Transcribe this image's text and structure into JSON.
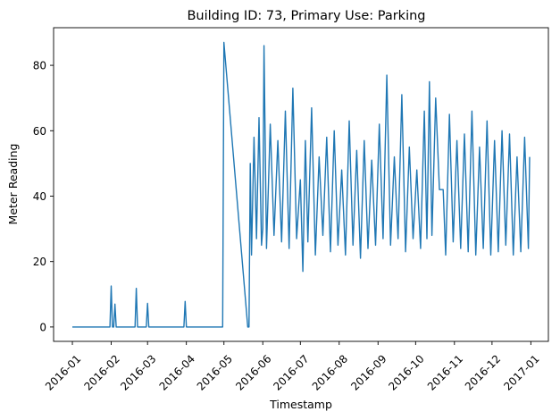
{
  "chart_data": {
    "type": "line",
    "title": "Building ID: 73, Primary Use: Parking",
    "xlabel": "Timestamp",
    "ylabel": "Meter Reading",
    "x_range": [
      "2015-12-17",
      "2017-01-15"
    ],
    "ylim": [
      -4.4,
      91.5
    ],
    "x_ticks": [
      "2016-01",
      "2016-02",
      "2016-03",
      "2016-04",
      "2016-05",
      "2016-06",
      "2016-07",
      "2016-08",
      "2016-09",
      "2016-10",
      "2016-11",
      "2016-12",
      "2017-01"
    ],
    "y_ticks": [
      0,
      20,
      40,
      60,
      80
    ],
    "grid": false,
    "legend": "none",
    "line_color": "#1f77b4",
    "series": [
      {
        "x": [
          "2016-01-01",
          "2016-01-31",
          "2016-02-01",
          "2016-02-02",
          "2016-02-03",
          "2016-02-04",
          "2016-02-05",
          "2016-02-20",
          "2016-02-21",
          "2016-02-22",
          "2016-02-29",
          "2016-03-01",
          "2016-03-02",
          "2016-03-30",
          "2016-03-31",
          "2016-04-01",
          "2016-04-29",
          "2016-04-30",
          "2016-05-01",
          "2016-05-20",
          "2016-05-21",
          "2016-05-22",
          "2016-05-23",
          "2016-05-25",
          "2016-05-27",
          "2016-05-29",
          "2016-05-31",
          "2016-06-01",
          "2016-06-02",
          "2016-06-04",
          "2016-06-07",
          "2016-06-10",
          "2016-06-13",
          "2016-06-16",
          "2016-06-19",
          "2016-06-22",
          "2016-06-25",
          "2016-06-28",
          "2016-07-01",
          "2016-07-03",
          "2016-07-05",
          "2016-07-07",
          "2016-07-10",
          "2016-07-13",
          "2016-07-16",
          "2016-07-19",
          "2016-07-22",
          "2016-07-25",
          "2016-07-28",
          "2016-07-31",
          "2016-08-03",
          "2016-08-06",
          "2016-08-09",
          "2016-08-12",
          "2016-08-15",
          "2016-08-18",
          "2016-08-21",
          "2016-08-24",
          "2016-08-27",
          "2016-08-30",
          "2016-09-02",
          "2016-09-05",
          "2016-09-08",
          "2016-09-11",
          "2016-09-14",
          "2016-09-17",
          "2016-09-20",
          "2016-09-23",
          "2016-09-26",
          "2016-09-29",
          "2016-10-02",
          "2016-10-05",
          "2016-10-08",
          "2016-10-10",
          "2016-10-12",
          "2016-10-14",
          "2016-10-17",
          "2016-10-20",
          "2016-10-23",
          "2016-10-25",
          "2016-10-28",
          "2016-10-31",
          "2016-11-03",
          "2016-11-06",
          "2016-11-09",
          "2016-11-12",
          "2016-11-15",
          "2016-11-18",
          "2016-11-21",
          "2016-11-24",
          "2016-11-27",
          "2016-11-30",
          "2016-12-03",
          "2016-12-06",
          "2016-12-09",
          "2016-12-12",
          "2016-12-15",
          "2016-12-18",
          "2016-12-21",
          "2016-12-24",
          "2016-12-27",
          "2016-12-30",
          "2016-12-31"
        ],
        "y": [
          0,
          0,
          12.5,
          0,
          0,
          7,
          0,
          0,
          11.8,
          0,
          0,
          7.2,
          0,
          0,
          7.8,
          0,
          0,
          0,
          87,
          0,
          0,
          50,
          22,
          58,
          27,
          64,
          25,
          30,
          86,
          24,
          62,
          28,
          57,
          26,
          66,
          24,
          73,
          27,
          45,
          17,
          57,
          26,
          67,
          22,
          52,
          28,
          58,
          23,
          60,
          25,
          48,
          22,
          63,
          25,
          54,
          21,
          57,
          24,
          51,
          25,
          62,
          27,
          77,
          25,
          52,
          27,
          71,
          23,
          55,
          27,
          48,
          24,
          66,
          27,
          75,
          28,
          70,
          42,
          42,
          22,
          65,
          26,
          57,
          24,
          59,
          23,
          66,
          22,
          55,
          24,
          63,
          22,
          57,
          23,
          60,
          25,
          59,
          22,
          52,
          23,
          58,
          24,
          52
        ]
      }
    ]
  }
}
